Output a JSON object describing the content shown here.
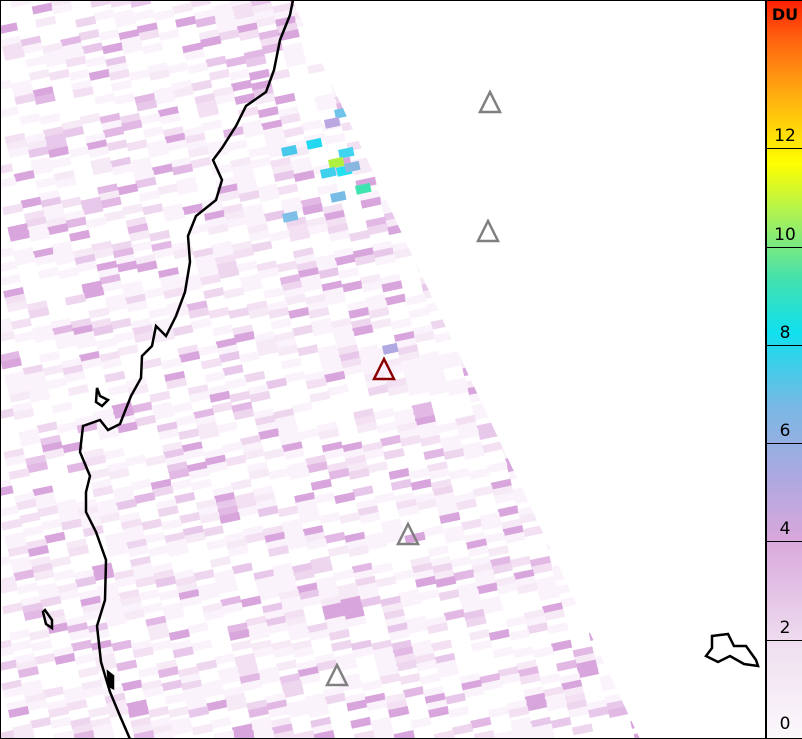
{
  "colorbar": {
    "unit": "DU",
    "ticks": [
      "0",
      "2",
      "4",
      "6",
      "8",
      "10",
      "12"
    ],
    "range": [
      0,
      15
    ]
  },
  "markers": [
    {
      "name": "volcano-triangle",
      "highlighted": false
    },
    {
      "name": "volcano-triangle",
      "highlighted": false
    },
    {
      "name": "volcano-triangle",
      "highlighted": true
    },
    {
      "name": "volcano-triangle",
      "highlighted": false
    },
    {
      "name": "volcano-triangle",
      "highlighted": false
    }
  ],
  "colors": {
    "marker": "#808080",
    "marker_highlight": "#8b0000",
    "coastline": "#000000"
  }
}
